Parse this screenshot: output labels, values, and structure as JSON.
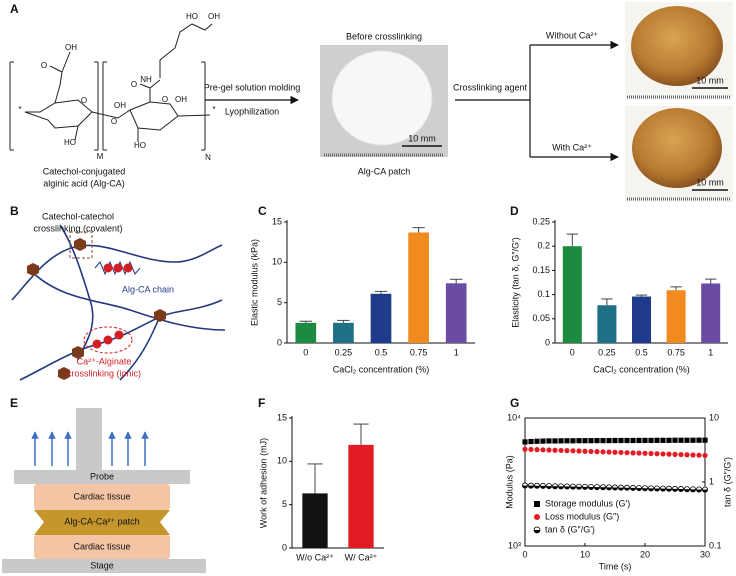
{
  "panel_labels": [
    "A",
    "B",
    "C",
    "D",
    "E",
    "F",
    "G"
  ],
  "diagram_a": {
    "chem_labels": [
      "HO",
      "OH",
      "NH",
      "O",
      "OH",
      "O",
      "O",
      "O",
      "OH",
      "O",
      "HO",
      "OH",
      "HO",
      "M",
      "N",
      "*",
      "*"
    ],
    "compound": [
      "Catechol-conjugated",
      "alginic acid (Alg-CA)"
    ],
    "step_top": "Pre-gel solution molding",
    "step_bottom": "Lyophilization",
    "before": "Before crosslinking",
    "patch_label": "Alg-CA patch",
    "agent": "Crosslinking agent",
    "without": "Without Ca²⁺",
    "with": "With Ca²⁺",
    "scale_bars": [
      "10 mm",
      "10 mm",
      "10 mm"
    ]
  },
  "diagram_b": {
    "covalent": [
      "Catechol-catechol",
      "crosslinking (covalent)"
    ],
    "chain": "Alg-CA chain",
    "ionic": [
      "Ca²⁺-Alginate",
      "crosslinking (ionic)"
    ]
  },
  "diagram_e": {
    "probe": "Probe",
    "tissue_top": "Cardiac tissue",
    "patch": "Alg-CA-Ca²⁺ patch",
    "tissue_bottom": "Cardiac tissue",
    "stage": "Stage"
  },
  "chart_data": [
    {
      "type": "bar",
      "categories": [
        "0",
        "0.25",
        "0.5",
        "0.75",
        "1"
      ],
      "values": [
        2.5,
        2.5,
        6.1,
        13.7,
        7.4
      ],
      "errors": [
        0.2,
        0.3,
        0.3,
        0.6,
        0.5
      ],
      "colors": [
        "#1c8a3f",
        "#1f6f86",
        "#1f3c8c",
        "#f28b1f",
        "#6a4ca3"
      ],
      "ylim": [
        0,
        15
      ],
      "yticks": [
        0,
        5,
        10,
        15
      ],
      "x_label": "CaCl₂ concentration (%)",
      "y_label": "Elastic modulus (kPa)"
    },
    {
      "type": "bar",
      "categories": [
        "0",
        "0.25",
        "0.5",
        "0.75",
        "1"
      ],
      "values": [
        0.2,
        0.078,
        0.096,
        0.109,
        0.123
      ],
      "errors": [
        0.025,
        0.013,
        0.003,
        0.007,
        0.009
      ],
      "colors": [
        "#1c8a3f",
        "#1f6f86",
        "#1f3c8c",
        "#f28b1f",
        "#6a4ca3"
      ],
      "ylim": [
        0,
        0.25
      ],
      "yticks": [
        0,
        0.05,
        0.1,
        0.15,
        0.2,
        0.25
      ],
      "x_label": "CaCl₂ concentration (%)",
      "y_label": "Elasticity (tan δ, G″/G′)"
    },
    {
      "type": "bar",
      "categories": [
        "W/o Ca²⁺",
        "W/ Ca²⁺"
      ],
      "values": [
        6.3,
        11.9
      ],
      "errors": [
        3.4,
        2.4
      ],
      "colors": [
        "#111111",
        "#e31b23"
      ],
      "ylim": [
        0,
        15
      ],
      "yticks": [
        0,
        5,
        10,
        15
      ],
      "y_label": "Work of adhesion (mJ)"
    },
    {
      "type": "line",
      "log_y": true,
      "x": [
        0,
        1,
        2,
        3,
        4,
        5,
        6,
        7,
        8,
        9,
        10,
        11,
        12,
        13,
        14,
        15,
        16,
        17,
        18,
        19,
        20,
        21,
        22,
        23,
        24,
        25,
        26,
        27,
        28,
        29,
        30
      ],
      "series": [
        {
          "name": "Storage modulus (G′)",
          "color": "#000000",
          "marker": "square",
          "values": [
            6500,
            6550,
            6580,
            6600,
            6620,
            6620,
            6630,
            6640,
            6640,
            6650,
            6650,
            6650,
            6660,
            6660,
            6660,
            6670,
            6670,
            6670,
            6670,
            6680,
            6680,
            6680,
            6690,
            6690,
            6690,
            6700,
            6700,
            6700,
            6700,
            6710,
            6710
          ]
        },
        {
          "name": "Loss modulus (G″)",
          "color": "#e31b23",
          "marker": "circle",
          "values": [
            5700,
            5680,
            5660,
            5640,
            5620,
            5600,
            5580,
            5560,
            5540,
            5520,
            5500,
            5480,
            5460,
            5440,
            5420,
            5400,
            5380,
            5360,
            5340,
            5320,
            5300,
            5280,
            5260,
            5240,
            5220,
            5200,
            5180,
            5160,
            5140,
            5120,
            5100
          ]
        },
        {
          "name": "tan δ (G″/G′)",
          "color": "#000000",
          "marker": "half",
          "axis": "y2",
          "values": [
            0.88,
            0.876,
            0.872,
            0.868,
            0.864,
            0.86,
            0.856,
            0.852,
            0.848,
            0.844,
            0.84,
            0.836,
            0.832,
            0.828,
            0.824,
            0.82,
            0.816,
            0.812,
            0.808,
            0.804,
            0.8,
            0.796,
            0.792,
            0.788,
            0.784,
            0.78,
            0.776,
            0.772,
            0.768,
            0.764,
            0.76
          ]
        }
      ],
      "xlim": [
        0,
        30
      ],
      "xticks": [
        0,
        10,
        20,
        30
      ],
      "ylim": [
        1000,
        10000
      ],
      "yticks": [
        {
          "value": 1000,
          "label": "10³"
        },
        {
          "value": 10000,
          "label": "10⁴"
        }
      ],
      "y2lim": [
        0.1,
        10
      ],
      "y2ticks": [
        0.1,
        1,
        10
      ],
      "x_label": "Time (s)",
      "y_label": "Modulus (Pa)",
      "y2_label": "tan δ (G″/G′)",
      "legend": "lower-left"
    }
  ]
}
